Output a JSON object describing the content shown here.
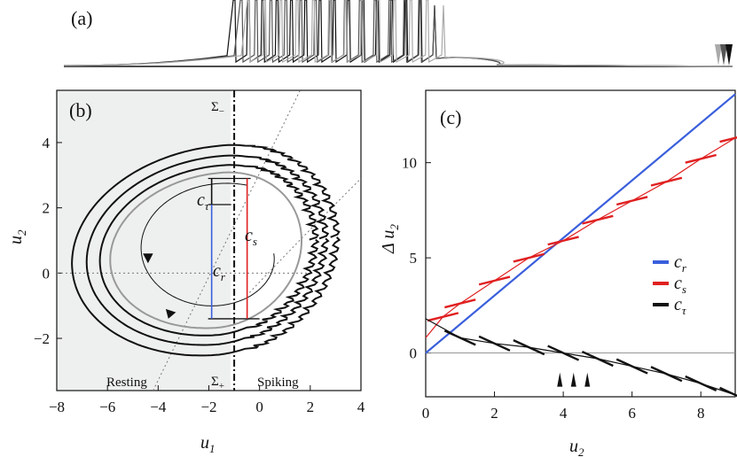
{
  "panels": {
    "a": {
      "label": "(a)"
    },
    "b": {
      "label": "(b)",
      "xlabel_main": "u",
      "xlabel_sub": "1",
      "ylabel_main": "u",
      "ylabel_sub": "2",
      "sigma_minus_main": "Σ",
      "sigma_minus_sub": "−",
      "sigma_plus_main": "Σ",
      "sigma_plus_sub": "+",
      "region_left": "Resting",
      "region_right": "Spiking",
      "c_tau_main": "c",
      "c_tau_sub": "τ",
      "c_r_main": "c",
      "c_r_sub": "r",
      "c_s_main": "c",
      "c_s_sub": "s"
    },
    "c": {
      "label": "(c)",
      "xlabel_main": "u",
      "xlabel_sub": "2",
      "ylabel_main": "Δ u",
      "ylabel_sub": "2"
    }
  },
  "chart_data": [
    {
      "type": "line",
      "title": "(a)",
      "xlabel": "",
      "ylabel": "",
      "description_series": [
        "black trace",
        "dark gray trace",
        "light gray trace"
      ],
      "spike_count": 14
    },
    {
      "type": "line",
      "title": "(b)",
      "xlabel": "u1",
      "ylabel": "u2",
      "xlim": [
        -8,
        4
      ],
      "ylim": [
        -3.6,
        5.6
      ],
      "xticks": [
        -8,
        -6,
        -4,
        -2,
        0,
        2,
        4
      ],
      "yticks": [
        -2,
        0,
        2,
        4
      ],
      "sigma_line_x": -1,
      "annotations": [
        "Σ−",
        "Σ+",
        "Resting",
        "Spiking",
        "cτ",
        "cr",
        "cs"
      ],
      "c_tau_range": [
        2.9,
        2.1
      ],
      "c_r_range": [
        2.1,
        -1.4
      ],
      "c_s_range": [
        2.9,
        -1.4
      ]
    },
    {
      "type": "line",
      "title": "(c)",
      "xlabel": "u2",
      "ylabel": "Δu2",
      "xlim": [
        0,
        9
      ],
      "ylim": [
        -2.3,
        13.8
      ],
      "xticks": [
        0,
        2,
        4,
        6,
        8
      ],
      "yticks": [
        0,
        5,
        10
      ],
      "legend": [
        "cr",
        "cs",
        "cτ"
      ],
      "legend_position": "center-right",
      "series": [
        {
          "name": "cr",
          "color": "#3a5fdc",
          "x": [
            0,
            9
          ],
          "y": [
            0,
            13.6
          ]
        },
        {
          "name": "cs",
          "color": "#e02020",
          "x": [
            0,
            0.5,
            1,
            2,
            3,
            4,
            5,
            6,
            7,
            8,
            9
          ],
          "y": [
            0.8,
            1.9,
            2.6,
            3.8,
            5.0,
            5.9,
            7.0,
            8.0,
            9.0,
            10.2,
            11.3
          ]
        },
        {
          "name": "cτ",
          "color": "#111111",
          "x": [
            0,
            1,
            2,
            3,
            4,
            5,
            6,
            7,
            8,
            9
          ],
          "y": [
            1.8,
            0.8,
            0.5,
            0.3,
            0,
            -0.3,
            -0.7,
            -1.1,
            -1.6,
            -2.2
          ]
        }
      ],
      "markers_x": [
        3.9,
        4.3,
        4.7
      ]
    }
  ],
  "colors": {
    "blue": "#3a5fdc",
    "red": "#e02020",
    "black": "#111111",
    "gray": "#999999",
    "shade": "#eef0ef"
  }
}
